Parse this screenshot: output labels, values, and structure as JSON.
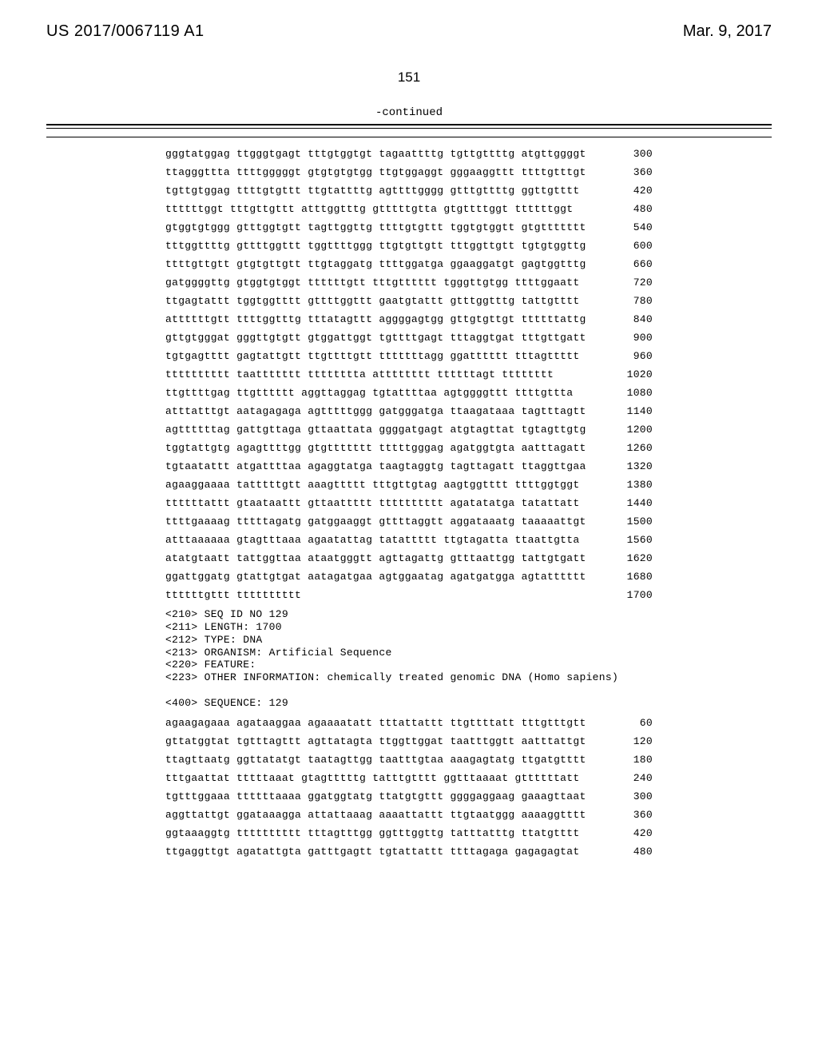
{
  "header": {
    "pubno": "US 2017/0067119 A1",
    "pubdate": "Mar. 9, 2017"
  },
  "pageno": "151",
  "continued": "-continued",
  "block1": [
    {
      "b": "gggtatggag ttgggtgagt tttgtggtgt tagaattttg tgttgttttg atgttggggt",
      "p": "300"
    },
    {
      "b": "ttagggttta ttttgggggt gtgtgtgtgg ttgtggaggt gggaaggttt ttttgtttgt",
      "p": "360"
    },
    {
      "b": "tgttgtggag ttttgtgttt ttgtattttg agttttgggg gtttgttttg ggttgtttt",
      "p": "420"
    },
    {
      "b": "ttttttggt tttgttgttt atttggtttg gtttttgtta gtgttttggt ttttttggt",
      "p": "480"
    },
    {
      "b": "gtggtgtggg gtttggtgtt tagttggttg ttttgtgttt tggtgtggtt gtgttttttt",
      "p": "540"
    },
    {
      "b": "tttggttttg gttttggttt tggttttggg ttgtgttgtt tttggttgtt tgtgtggttg",
      "p": "600"
    },
    {
      "b": "ttttgttgtt gtgtgttgtt ttgtaggatg ttttggatga ggaaggatgt gagtggtttg",
      "p": "660"
    },
    {
      "b": "gatggggttg gtggtgtggt ttttttgtt tttgtttttt tgggttgtgg ttttggaatt",
      "p": "720"
    },
    {
      "b": "ttgagtattt tggtggtttt gttttggttt gaatgtattt gtttggtttg tattgtttt",
      "p": "780"
    },
    {
      "b": "attttttgtt ttttggtttg tttatagttt aggggagtgg gttgtgttgt ttttttattg",
      "p": "840"
    },
    {
      "b": "gttgtgggat gggttgtgtt gtggattggt tgttttgagt tttaggtgat tttgttgatt",
      "p": "900"
    },
    {
      "b": "tgtgagtttt gagtattgtt ttgttttgtt tttttttagg ggatttttt tttagttttt",
      "p": "960"
    },
    {
      "b": "tttttttttt taattttttt tttttttta atttttttt ttttttagt tttttttt",
      "p": "1020"
    },
    {
      "b": "ttgttttgag ttgtttttt aggttaggag tgtattttaa agtggggttt ttttgttta",
      "p": "1080"
    },
    {
      "b": "atttatttgt aatagagaga agtttttggg gatgggatga ttaagataaa tagtttagtt",
      "p": "1140"
    },
    {
      "b": "agttttttag gattgttaga gttaattata ggggatgagt atgtagttat tgtagttgtg",
      "p": "1200"
    },
    {
      "b": "tggtattgtg agagttttgg gtgttttttt tttttgggag agatggtgta aatttagatt",
      "p": "1260"
    },
    {
      "b": "tgtaatattt atgattttaa agaggtatga taagtaggtg tagttagatt ttaggttgaa",
      "p": "1320"
    },
    {
      "b": "agaaggaaaa tatttttgtt aaagttttt tttgttgtag aagtggtttt ttttggtggt",
      "p": "1380"
    },
    {
      "b": "ttttttattt gtaataattt gttaattttt tttttttttt agatatatga tatattatt",
      "p": "1440"
    },
    {
      "b": "ttttgaaaag tttttagatg gatggaaggt gttttaggtt aggataaatg taaaaattgt",
      "p": "1500"
    },
    {
      "b": "atttaaaaaa gtagtttaaa agaatattag tatattttt ttgtagatta ttaattgtta",
      "p": "1560"
    },
    {
      "b": "atatgtaatt tattggttaa ataatgggtt agttagattg gtttaattgg tattgtgatt",
      "p": "1620"
    },
    {
      "b": "ggattggatg gtattgtgat aatagatgaa agtggaatag agatgatgga agtatttttt",
      "p": "1680"
    },
    {
      "b": "ttttttgttt tttttttttt",
      "p": "1700"
    }
  ],
  "metaLines": [
    "<210> SEQ ID NO 129",
    "<211> LENGTH: 1700",
    "<212> TYPE: DNA",
    "<213> ORGANISM: Artificial Sequence",
    "<220> FEATURE:",
    "<223> OTHER INFORMATION: chemically treated genomic DNA (Homo sapiens)",
    "",
    "<400> SEQUENCE: 129"
  ],
  "block2": [
    {
      "b": "agaagagaaa agataaggaa agaaaatatt tttattattt ttgttttatt tttgtttgtt",
      "p": "60"
    },
    {
      "b": "gttatggtat tgtttagttt agttatagta ttggttggat taatttggtt aatttattgt",
      "p": "120"
    },
    {
      "b": "ttagttaatg ggttatatgt taatagttgg taatttgtaa aaagagtatg ttgatgtttt",
      "p": "180"
    },
    {
      "b": "tttgaattat tttttaaat gtagtttttg tatttgtttt ggtttaaaat gttttttatt",
      "p": "240"
    },
    {
      "b": "tgtttggaaa ttttttaaaa ggatggtatg ttatgtgttt ggggaggaag gaaagttaat",
      "p": "300"
    },
    {
      "b": "aggttattgt ggataaagga attattaaag aaaattattt ttgtaatggg aaaaggtttt",
      "p": "360"
    },
    {
      "b": "ggtaaaggtg tttttttttt tttagtttgg ggtttggttg tatttatttg ttatgtttt",
      "p": "420"
    },
    {
      "b": "ttgaggttgt agatattgta gatttgagtt tgtattattt ttttagaga gagagagtat",
      "p": "480"
    }
  ]
}
